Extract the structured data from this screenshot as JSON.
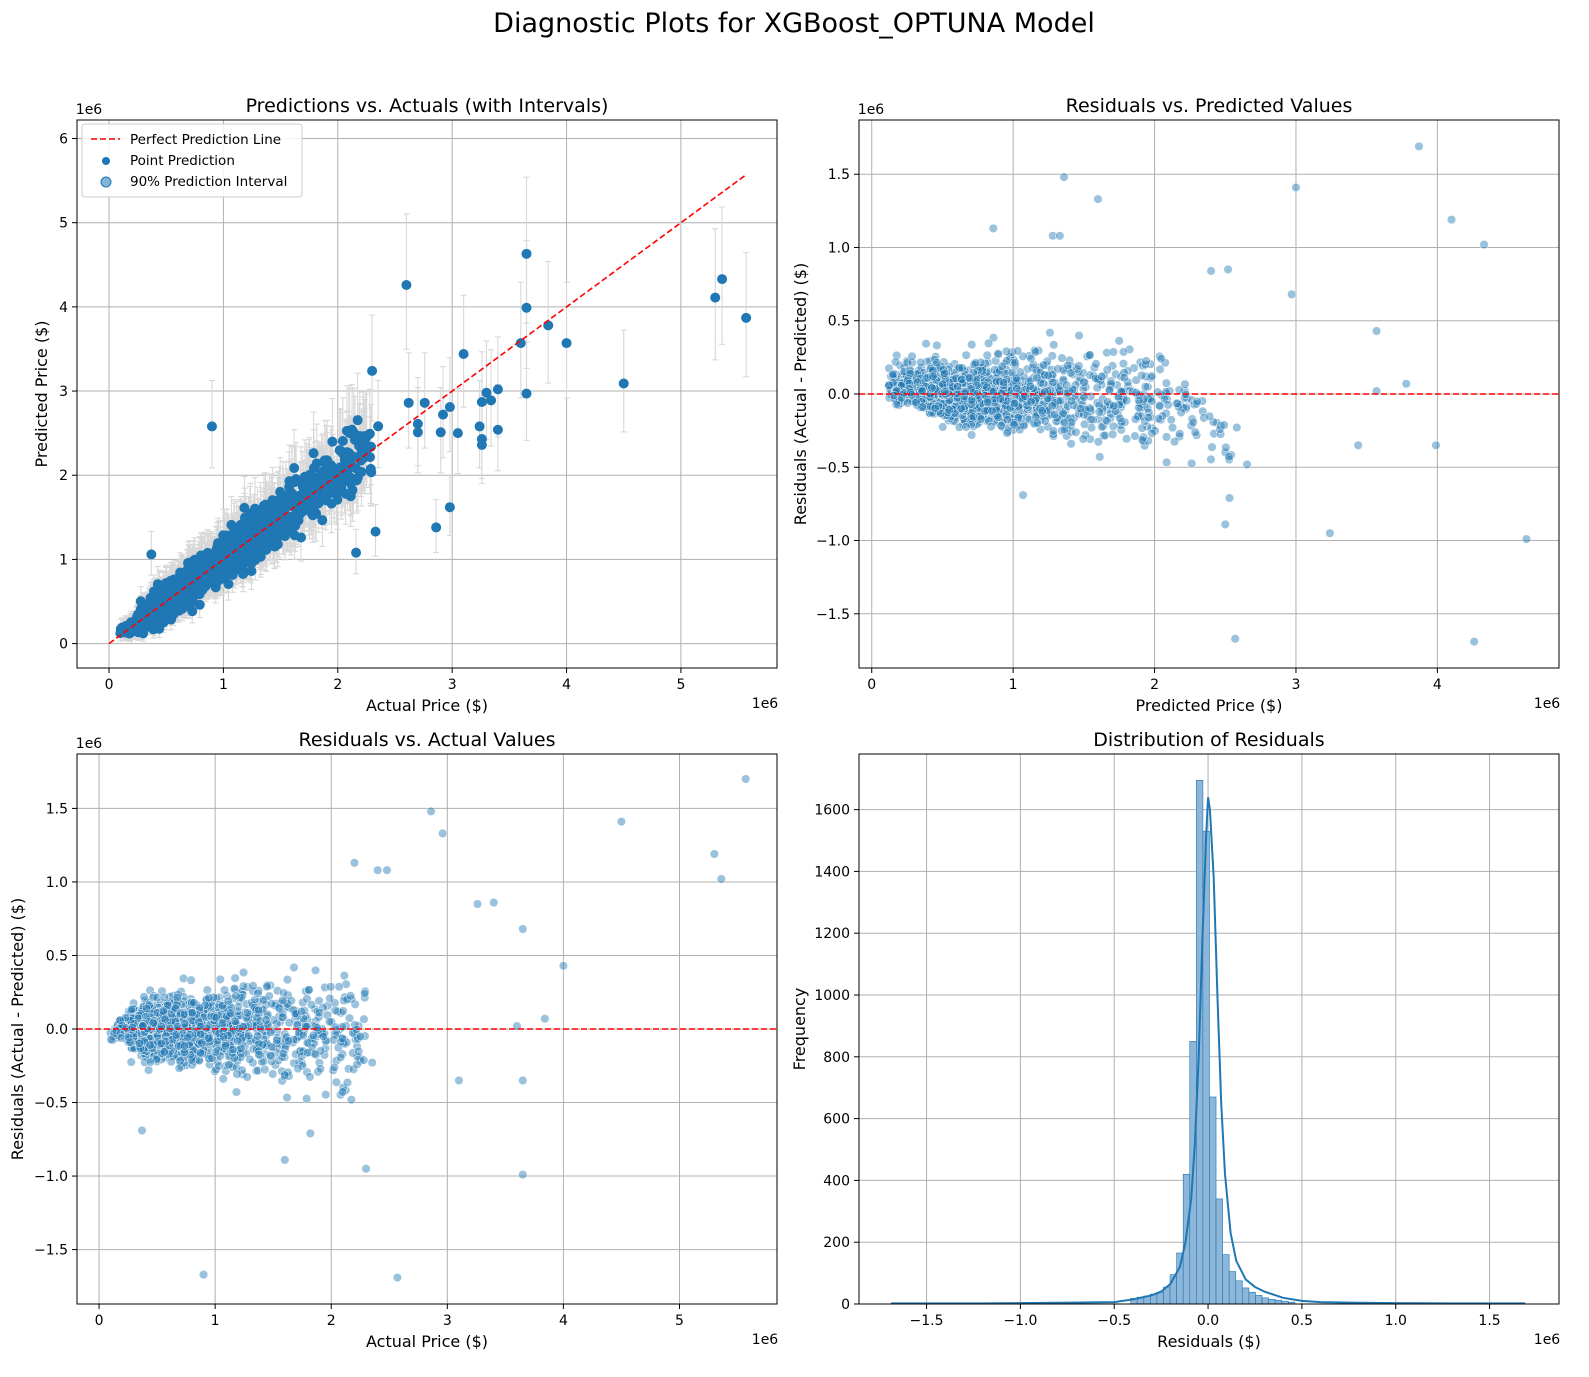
{
  "figure_title": "Diagnostic Plots for XGBoost_OPTUNA Model",
  "colors": {
    "point": "#1f77b4",
    "reference_line": "#ff0000",
    "error_bar": "#d8d8d8",
    "grid": "#b0b0b0",
    "hist_bar": "#8eb6d8",
    "kde": "#1f77b4"
  },
  "chart_data": [
    {
      "type": "scatter",
      "title": "Predictions vs. Actuals (with Intervals)",
      "xlabel": "Actual Price ($)",
      "ylabel": "Predicted Price ($)",
      "x_exponent": "1e6",
      "y_exponent": "1e6",
      "xlim": [
        -0.28,
        5.84
      ],
      "ylim": [
        -0.29,
        6.22
      ],
      "xticks": [
        0,
        1,
        2,
        3,
        4,
        5
      ],
      "yticks": [
        0,
        1,
        2,
        3,
        4,
        5,
        6
      ],
      "grid": true,
      "legend": {
        "placement": "top-left",
        "entries": [
          "Perfect Prediction Line",
          "Point Prediction",
          "90% Prediction Interval"
        ]
      },
      "reference_line": {
        "from": [
          0,
          0
        ],
        "to": [
          5.57,
          5.57
        ]
      },
      "notable_points": [
        [
          0.9,
          2.58
        ],
        [
          2.6,
          4.26
        ],
        [
          3.65,
          4.63
        ],
        [
          3.65,
          3.99
        ],
        [
          3.6,
          3.57
        ],
        [
          3.65,
          2.97
        ],
        [
          3.84,
          3.78
        ],
        [
          4.0,
          3.57
        ],
        [
          4.5,
          3.09
        ],
        [
          5.3,
          4.11
        ],
        [
          5.36,
          4.33
        ],
        [
          5.57,
          3.87
        ],
        [
          3.1,
          3.44
        ],
        [
          2.3,
          3.24
        ],
        [
          2.98,
          1.62
        ],
        [
          2.86,
          1.38
        ],
        [
          2.33,
          1.33
        ],
        [
          2.16,
          1.08
        ],
        [
          0.37,
          1.06
        ],
        [
          3.26,
          2.87
        ],
        [
          3.3,
          2.98
        ],
        [
          3.4,
          3.02
        ],
        [
          3.34,
          2.89
        ],
        [
          3.4,
          2.54
        ],
        [
          3.24,
          2.58
        ],
        [
          3.26,
          2.43
        ],
        [
          3.26,
          2.36
        ],
        [
          3.05,
          2.5
        ],
        [
          2.98,
          2.81
        ],
        [
          2.92,
          2.72
        ],
        [
          2.9,
          2.51
        ],
        [
          2.7,
          2.51
        ],
        [
          2.62,
          2.86
        ],
        [
          2.7,
          2.61
        ],
        [
          2.76,
          2.86
        ]
      ]
    },
    {
      "type": "scatter",
      "title": "Residuals vs. Predicted Values",
      "xlabel": "Predicted Price ($)",
      "ylabel": "Residuals (Actual - Predicted) ($)",
      "x_exponent": "1e6",
      "y_exponent": "1e6",
      "xlim": [
        -0.09,
        4.86
      ],
      "ylim": [
        -1.87,
        1.87
      ],
      "xticks": [
        0,
        1,
        2,
        3,
        4
      ],
      "yticks": [
        -1.5,
        -1.0,
        -0.5,
        0.0,
        0.5,
        1.0,
        1.5
      ],
      "ytick_labels": [
        "−1.5",
        "−1.0",
        "−0.5",
        "0.0",
        "0.5",
        "1.0",
        "1.5"
      ],
      "grid": true,
      "zero_line": 0,
      "notable_points": [
        [
          3.87,
          1.69
        ],
        [
          1.36,
          1.48
        ],
        [
          3.0,
          1.41
        ],
        [
          1.6,
          1.33
        ],
        [
          4.1,
          1.19
        ],
        [
          4.33,
          1.02
        ],
        [
          0.86,
          1.13
        ],
        [
          1.28,
          1.08
        ],
        [
          1.33,
          1.08
        ],
        [
          2.57,
          -1.67
        ],
        [
          4.26,
          -1.69
        ],
        [
          4.63,
          -0.99
        ],
        [
          3.24,
          -0.95
        ],
        [
          2.5,
          -0.89
        ],
        [
          2.53,
          -0.71
        ],
        [
          1.07,
          -0.69
        ],
        [
          3.57,
          0.43
        ],
        [
          3.44,
          -0.35
        ],
        [
          3.99,
          -0.35
        ],
        [
          3.78,
          0.07
        ],
        [
          3.57,
          0.02
        ],
        [
          2.97,
          0.68
        ],
        [
          2.4,
          0.84
        ],
        [
          2.52,
          0.85
        ]
      ]
    },
    {
      "type": "scatter",
      "title": "Residuals vs. Actual Values",
      "xlabel": "Actual Price ($)",
      "ylabel": "Residuals (Actual - Predicted) ($)",
      "x_exponent": "1e6",
      "y_exponent": "1e6",
      "xlim": [
        -0.19,
        5.84
      ],
      "ylim": [
        -1.87,
        1.87
      ],
      "xticks": [
        0,
        1,
        2,
        3,
        4,
        5
      ],
      "yticks": [
        -1.5,
        -1.0,
        -0.5,
        0.0,
        0.5,
        1.0,
        1.5
      ],
      "ytick_labels": [
        "−1.5",
        "−1.0",
        "−0.5",
        "0.0",
        "0.5",
        "1.0",
        "1.5"
      ],
      "grid": true,
      "zero_line": 0,
      "notable_points": [
        [
          5.57,
          1.7
        ],
        [
          2.86,
          1.48
        ],
        [
          2.96,
          1.33
        ],
        [
          4.5,
          1.41
        ],
        [
          5.3,
          1.19
        ],
        [
          5.36,
          1.02
        ],
        [
          2.2,
          1.13
        ],
        [
          2.4,
          1.08
        ],
        [
          2.48,
          1.08
        ],
        [
          0.9,
          -1.67
        ],
        [
          2.57,
          -1.69
        ],
        [
          3.65,
          -0.99
        ],
        [
          2.3,
          -0.95
        ],
        [
          1.6,
          -0.89
        ],
        [
          1.82,
          -0.71
        ],
        [
          0.37,
          -0.69
        ],
        [
          4.0,
          0.43
        ],
        [
          3.1,
          -0.35
        ],
        [
          3.65,
          -0.35
        ],
        [
          3.84,
          0.07
        ],
        [
          3.6,
          0.02
        ],
        [
          3.65,
          0.68
        ],
        [
          3.4,
          0.86
        ],
        [
          3.26,
          0.85
        ]
      ]
    },
    {
      "type": "bar",
      "title": "Distribution of Residuals",
      "xlabel": "Residuals ($)",
      "ylabel": "Frequency",
      "x_exponent": "1e6",
      "xlim": [
        -1.86,
        1.87
      ],
      "ylim": [
        0,
        1780
      ],
      "xticks": [
        -1.5,
        -1.0,
        -0.5,
        0.0,
        0.5,
        1.0,
        1.5
      ],
      "xtick_labels": [
        "−1.5",
        "−1.0",
        "−0.5",
        "0.0",
        "0.5",
        "1.0",
        "1.5"
      ],
      "yticks": [
        0,
        200,
        400,
        600,
        800,
        1000,
        1200,
        1400,
        1600
      ],
      "grid": true,
      "kde": true,
      "bin_centers": [
        -0.395,
        -0.36,
        -0.325,
        -0.29,
        -0.255,
        -0.22,
        -0.185,
        -0.15,
        -0.115,
        -0.08,
        -0.045,
        -0.01,
        0.025,
        0.06,
        0.095,
        0.13,
        0.165,
        0.2,
        0.235,
        0.27,
        0.305,
        0.34,
        0.375,
        0.41,
        0.445
      ],
      "bin_width": 0.035,
      "values": [
        18,
        22,
        26,
        32,
        38,
        55,
        95,
        165,
        420,
        850,
        1695,
        1530,
        670,
        340,
        160,
        105,
        75,
        52,
        38,
        28,
        20,
        15,
        12,
        9,
        6
      ],
      "kde_curve": {
        "x": [
          -1.69,
          -1.2,
          -0.8,
          -0.5,
          -0.4,
          -0.3,
          -0.25,
          -0.2,
          -0.15,
          -0.12,
          -0.09,
          -0.07,
          -0.05,
          -0.03,
          -0.01,
          0.0,
          0.01,
          0.03,
          0.05,
          0.07,
          0.09,
          0.12,
          0.15,
          0.2,
          0.25,
          0.3,
          0.4,
          0.5,
          0.6,
          0.8,
          1.0,
          1.3,
          1.69
        ],
        "y": [
          2,
          2,
          4,
          6,
          15,
          28,
          40,
          65,
          120,
          200,
          340,
          520,
          800,
          1180,
          1520,
          1640,
          1600,
          1380,
          1000,
          650,
          420,
          230,
          140,
          80,
          55,
          40,
          20,
          10,
          6,
          4,
          3,
          2,
          2
        ]
      }
    }
  ]
}
